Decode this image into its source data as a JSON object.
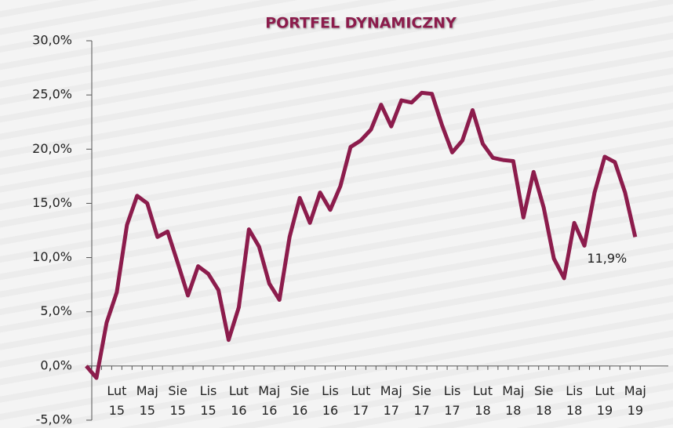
{
  "chart_data": {
    "type": "line",
    "title": "PORTFEL DYNAMICZNY",
    "categories": [
      null,
      null,
      null,
      "Lut 15",
      null,
      null,
      "Maj 15",
      null,
      null,
      "Sie 15",
      null,
      null,
      "Lis 15",
      null,
      null,
      "Lut 16",
      null,
      null,
      "Maj 16",
      null,
      null,
      "Sie 16",
      null,
      null,
      "Lis 16",
      null,
      null,
      "Lut 17",
      null,
      null,
      "Maj 17",
      null,
      null,
      "Sie 17",
      null,
      null,
      "Lis 17",
      null,
      null,
      "Lut 18",
      null,
      null,
      "Maj 18",
      null,
      null,
      "Sie 18",
      null,
      null,
      "Lis 18",
      null,
      null,
      "Lut 19",
      null,
      null,
      "Maj 19"
    ],
    "series": [
      {
        "color": "#8c1c4c",
        "values": [
          0,
          -1.1,
          4.0,
          6.8,
          13.0,
          15.7,
          15.0,
          11.9,
          12.4,
          9.5,
          6.5,
          9.2,
          8.5,
          7.0,
          2.4,
          5.4,
          12.6,
          11.0,
          7.6,
          6.1,
          11.9,
          15.5,
          13.2,
          16.0,
          14.4,
          16.6,
          20.2,
          20.8,
          21.8,
          24.1,
          22.1,
          24.5,
          24.3,
          25.2,
          25.1,
          22.2,
          19.7,
          20.8,
          23.6,
          20.5,
          19.2,
          19.0,
          18.9,
          13.7,
          17.9,
          14.6,
          9.9,
          8.1,
          13.2,
          11.1,
          16.0,
          19.3,
          18.8,
          16.0,
          11.9
        ],
        "value_labels": [
          null,
          null,
          null,
          null,
          null,
          null,
          null,
          null,
          null,
          null,
          null,
          null,
          null,
          null,
          null,
          null,
          null,
          null,
          null,
          null,
          null,
          null,
          null,
          null,
          null,
          null,
          null,
          null,
          null,
          null,
          null,
          null,
          null,
          null,
          null,
          null,
          null,
          null,
          null,
          null,
          null,
          null,
          null,
          null,
          null,
          null,
          null,
          null,
          null,
          null,
          null,
          null,
          null,
          null,
          "11,9%"
        ]
      }
    ],
    "ylim": [
      -5,
      30
    ],
    "yticks": [
      {
        "value": -5,
        "label": "-5,0%"
      },
      {
        "value": 0,
        "label": "0,0%"
      },
      {
        "value": 5,
        "label": "5,0%"
      },
      {
        "value": 10,
        "label": "10,0%"
      },
      {
        "value": 15,
        "label": "15,0%"
      },
      {
        "value": 20,
        "label": "20,0%"
      },
      {
        "value": 25,
        "label": "25,0%"
      },
      {
        "value": 30,
        "label": "30,0%"
      }
    ]
  }
}
